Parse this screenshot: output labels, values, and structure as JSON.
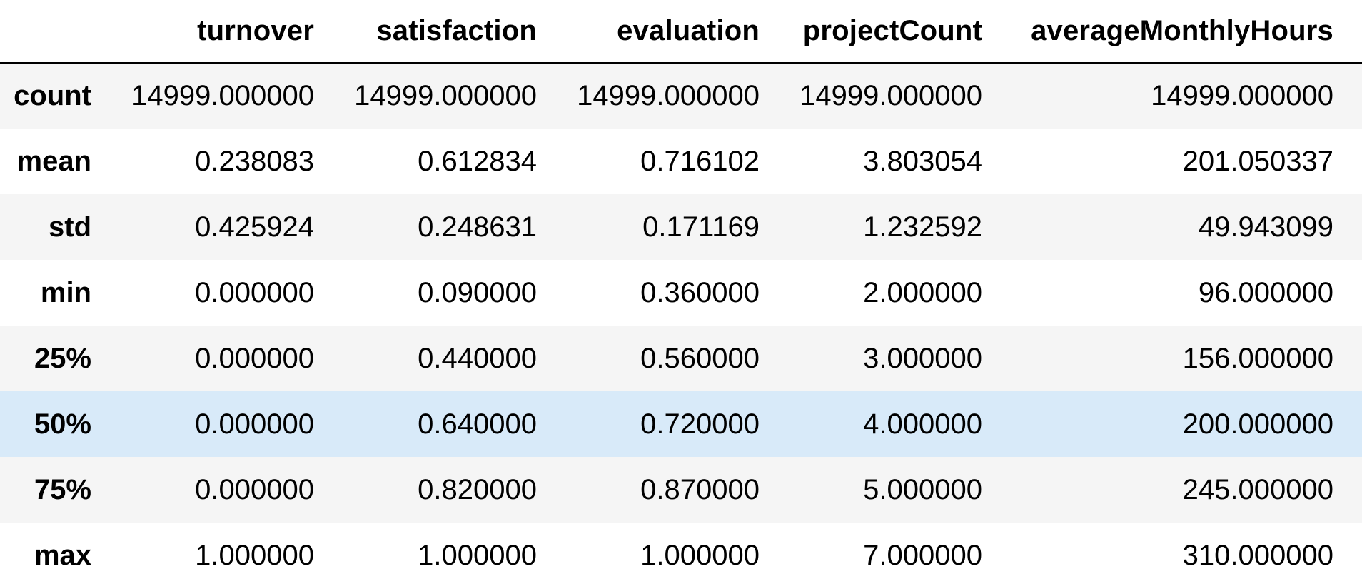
{
  "table": {
    "columns": [
      "turnover",
      "satisfaction",
      "evaluation",
      "projectCount",
      "averageMonthlyHours"
    ],
    "rows": [
      {
        "label": "count",
        "values": [
          "14999.000000",
          "14999.000000",
          "14999.000000",
          "14999.000000",
          "14999.000000"
        ]
      },
      {
        "label": "mean",
        "values": [
          "0.238083",
          "0.612834",
          "0.716102",
          "3.803054",
          "201.050337"
        ]
      },
      {
        "label": "std",
        "values": [
          "0.425924",
          "0.248631",
          "0.171169",
          "1.232592",
          "49.943099"
        ]
      },
      {
        "label": "min",
        "values": [
          "0.000000",
          "0.090000",
          "0.360000",
          "2.000000",
          "96.000000"
        ]
      },
      {
        "label": "25%",
        "values": [
          "0.000000",
          "0.440000",
          "0.560000",
          "3.000000",
          "156.000000"
        ]
      },
      {
        "label": "50%",
        "values": [
          "0.000000",
          "0.640000",
          "0.720000",
          "4.000000",
          "200.000000"
        ]
      },
      {
        "label": "75%",
        "values": [
          "0.000000",
          "0.820000",
          "0.870000",
          "5.000000",
          "245.000000"
        ]
      },
      {
        "label": "max",
        "values": [
          "1.000000",
          "1.000000",
          "1.000000",
          "7.000000",
          "310.000000"
        ]
      }
    ]
  },
  "colors": {
    "row_stripe": "#f5f5f5",
    "row_highlight": "#d8eaf9",
    "header_rule": "#000000"
  }
}
